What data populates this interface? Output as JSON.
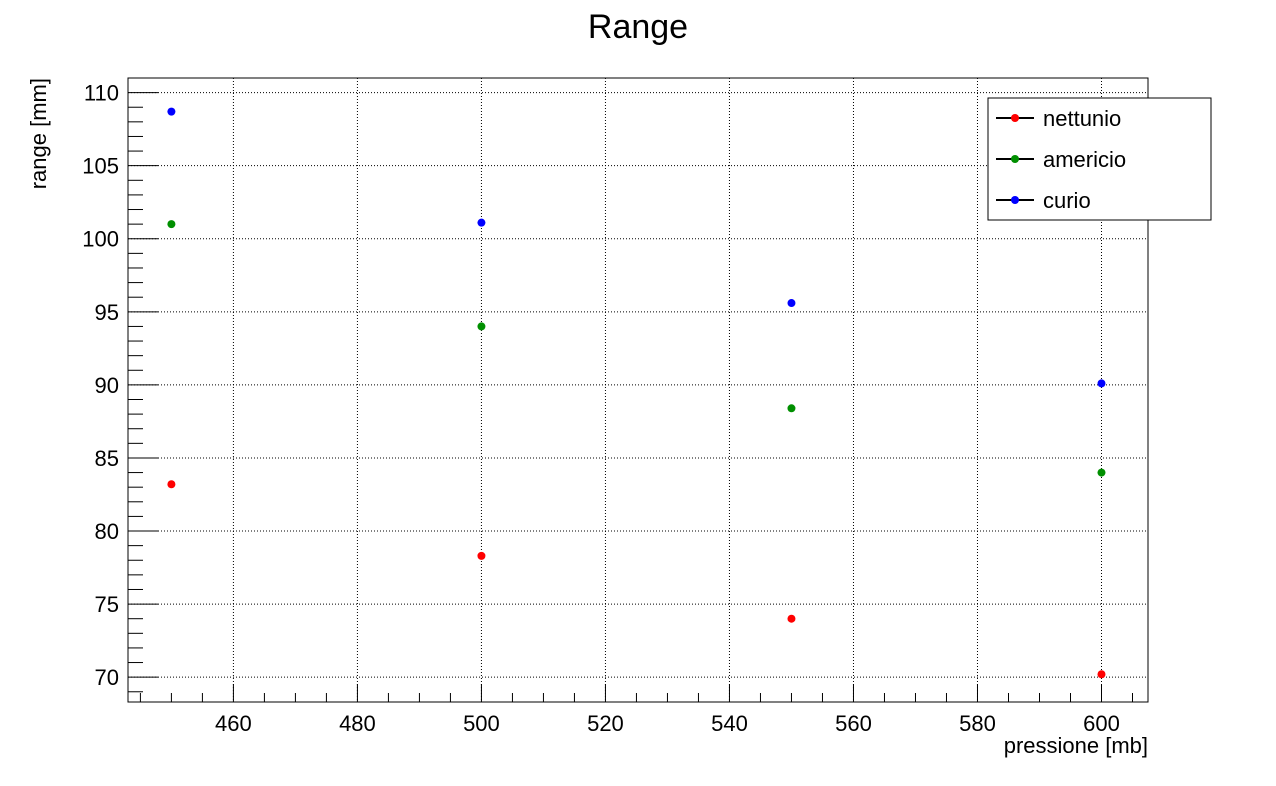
{
  "chart_data": {
    "type": "scatter",
    "title": "Range",
    "xlabel": "pressione [mb]",
    "ylabel": "range [mm]",
    "xlim": [
      443.0,
      607.5
    ],
    "ylim": [
      68.3,
      111.0
    ],
    "xticks": [
      460,
      480,
      500,
      520,
      540,
      560,
      580,
      600
    ],
    "yticks": [
      70,
      75,
      80,
      85,
      90,
      95,
      100,
      105,
      110
    ],
    "grid": true,
    "legend_position": "top-right",
    "series": [
      {
        "name": "nettunio",
        "color": "#ff0000",
        "x": [
          450,
          500,
          550,
          600
        ],
        "y": [
          83.2,
          78.3,
          74.0,
          70.2
        ]
      },
      {
        "name": "americio",
        "color": "#008f00",
        "x": [
          450,
          500,
          550,
          600
        ],
        "y": [
          101.0,
          94.0,
          88.4,
          84.0
        ]
      },
      {
        "name": "curio",
        "color": "#0000ff",
        "x": [
          450,
          500,
          550,
          600
        ],
        "y": [
          108.7,
          101.1,
          95.6,
          90.1
        ]
      }
    ]
  }
}
